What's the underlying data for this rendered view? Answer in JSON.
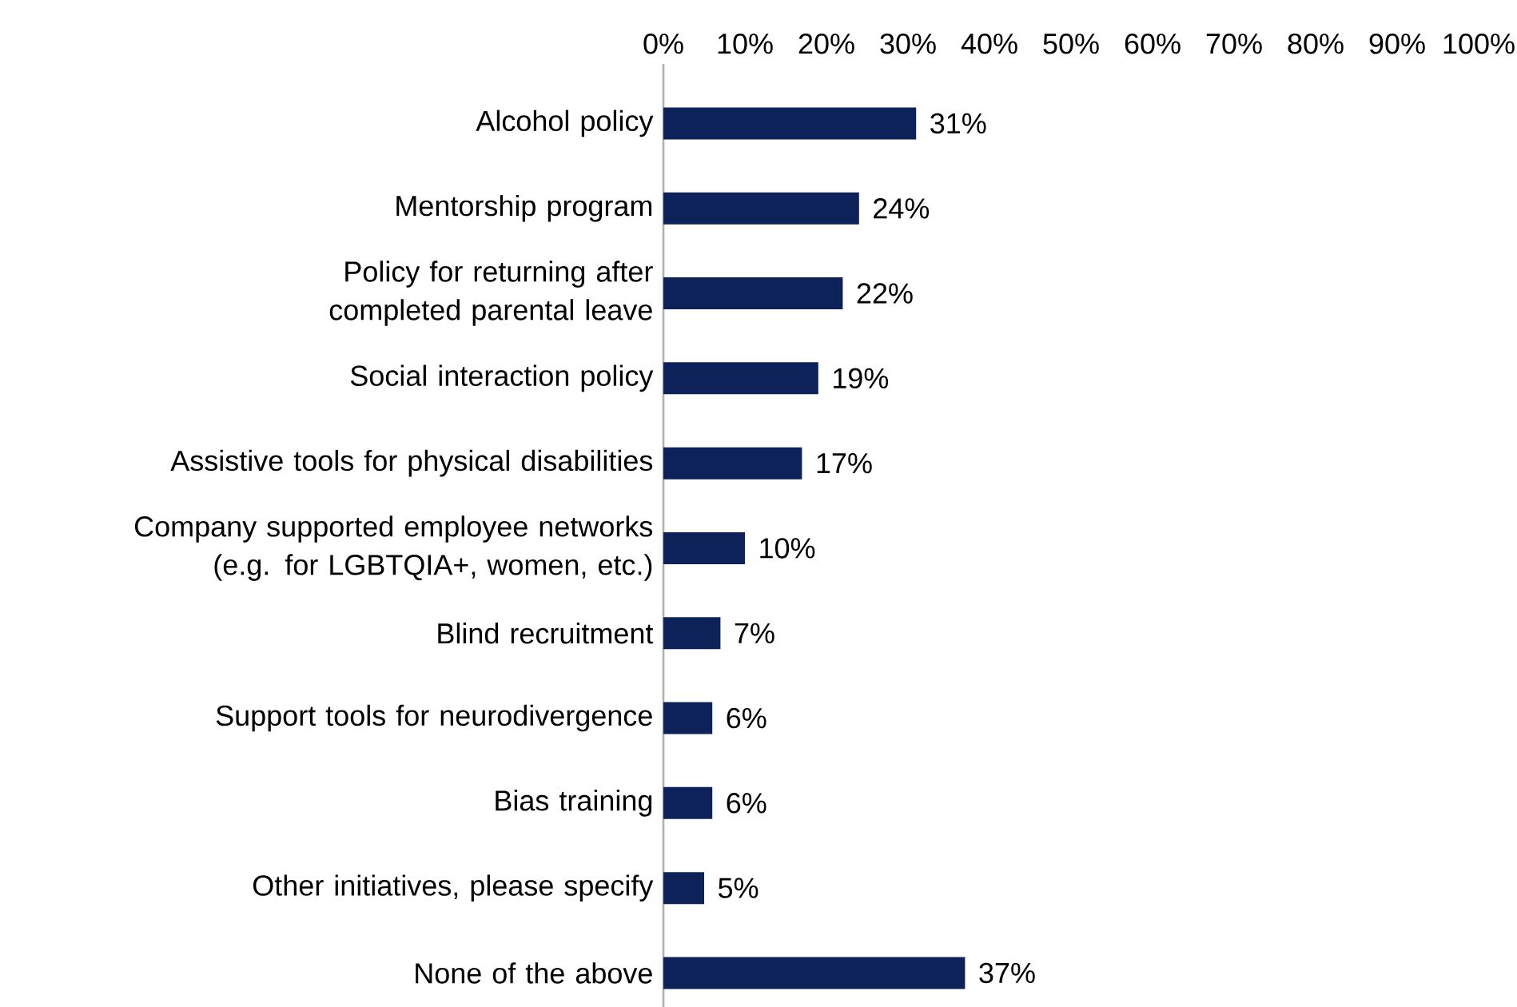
{
  "chart_data": {
    "type": "bar",
    "orientation": "horizontal",
    "categories": [
      "Alcohol policy",
      "Mentorship program",
      "Policy for returning after completed parental leave",
      "Social interaction policy",
      "Assistive tools for physical disabilities",
      "Company supported employee networks (e.g. for LGBTQIA+, women, etc.)",
      "Blind recruitment",
      "Support tools for neurodivergence",
      "Bias training",
      "Other initiatives, please specify",
      "None of the above"
    ],
    "values": [
      31,
      24,
      22,
      19,
      17,
      10,
      7,
      6,
      6,
      5,
      37
    ],
    "value_labels": [
      "31%",
      "24%",
      "22%",
      "19%",
      "17%",
      "10%",
      "7%",
      "6%",
      "6%",
      "5%",
      "37%"
    ],
    "color": "#0c2259",
    "xlim": [
      0,
      100
    ],
    "xticks": [
      {
        "value": 0,
        "label": "0%"
      },
      {
        "value": 10,
        "label": "10%"
      },
      {
        "value": 20,
        "label": "20%"
      },
      {
        "value": 30,
        "label": "30%"
      },
      {
        "value": 40,
        "label": "40%"
      },
      {
        "value": 50,
        "label": "50%"
      },
      {
        "value": 60,
        "label": "60%"
      },
      {
        "value": 70,
        "label": "70%"
      },
      {
        "value": 80,
        "label": "80%"
      },
      {
        "value": 90,
        "label": "90%"
      },
      {
        "value": 100,
        "label": "100%"
      }
    ]
  }
}
